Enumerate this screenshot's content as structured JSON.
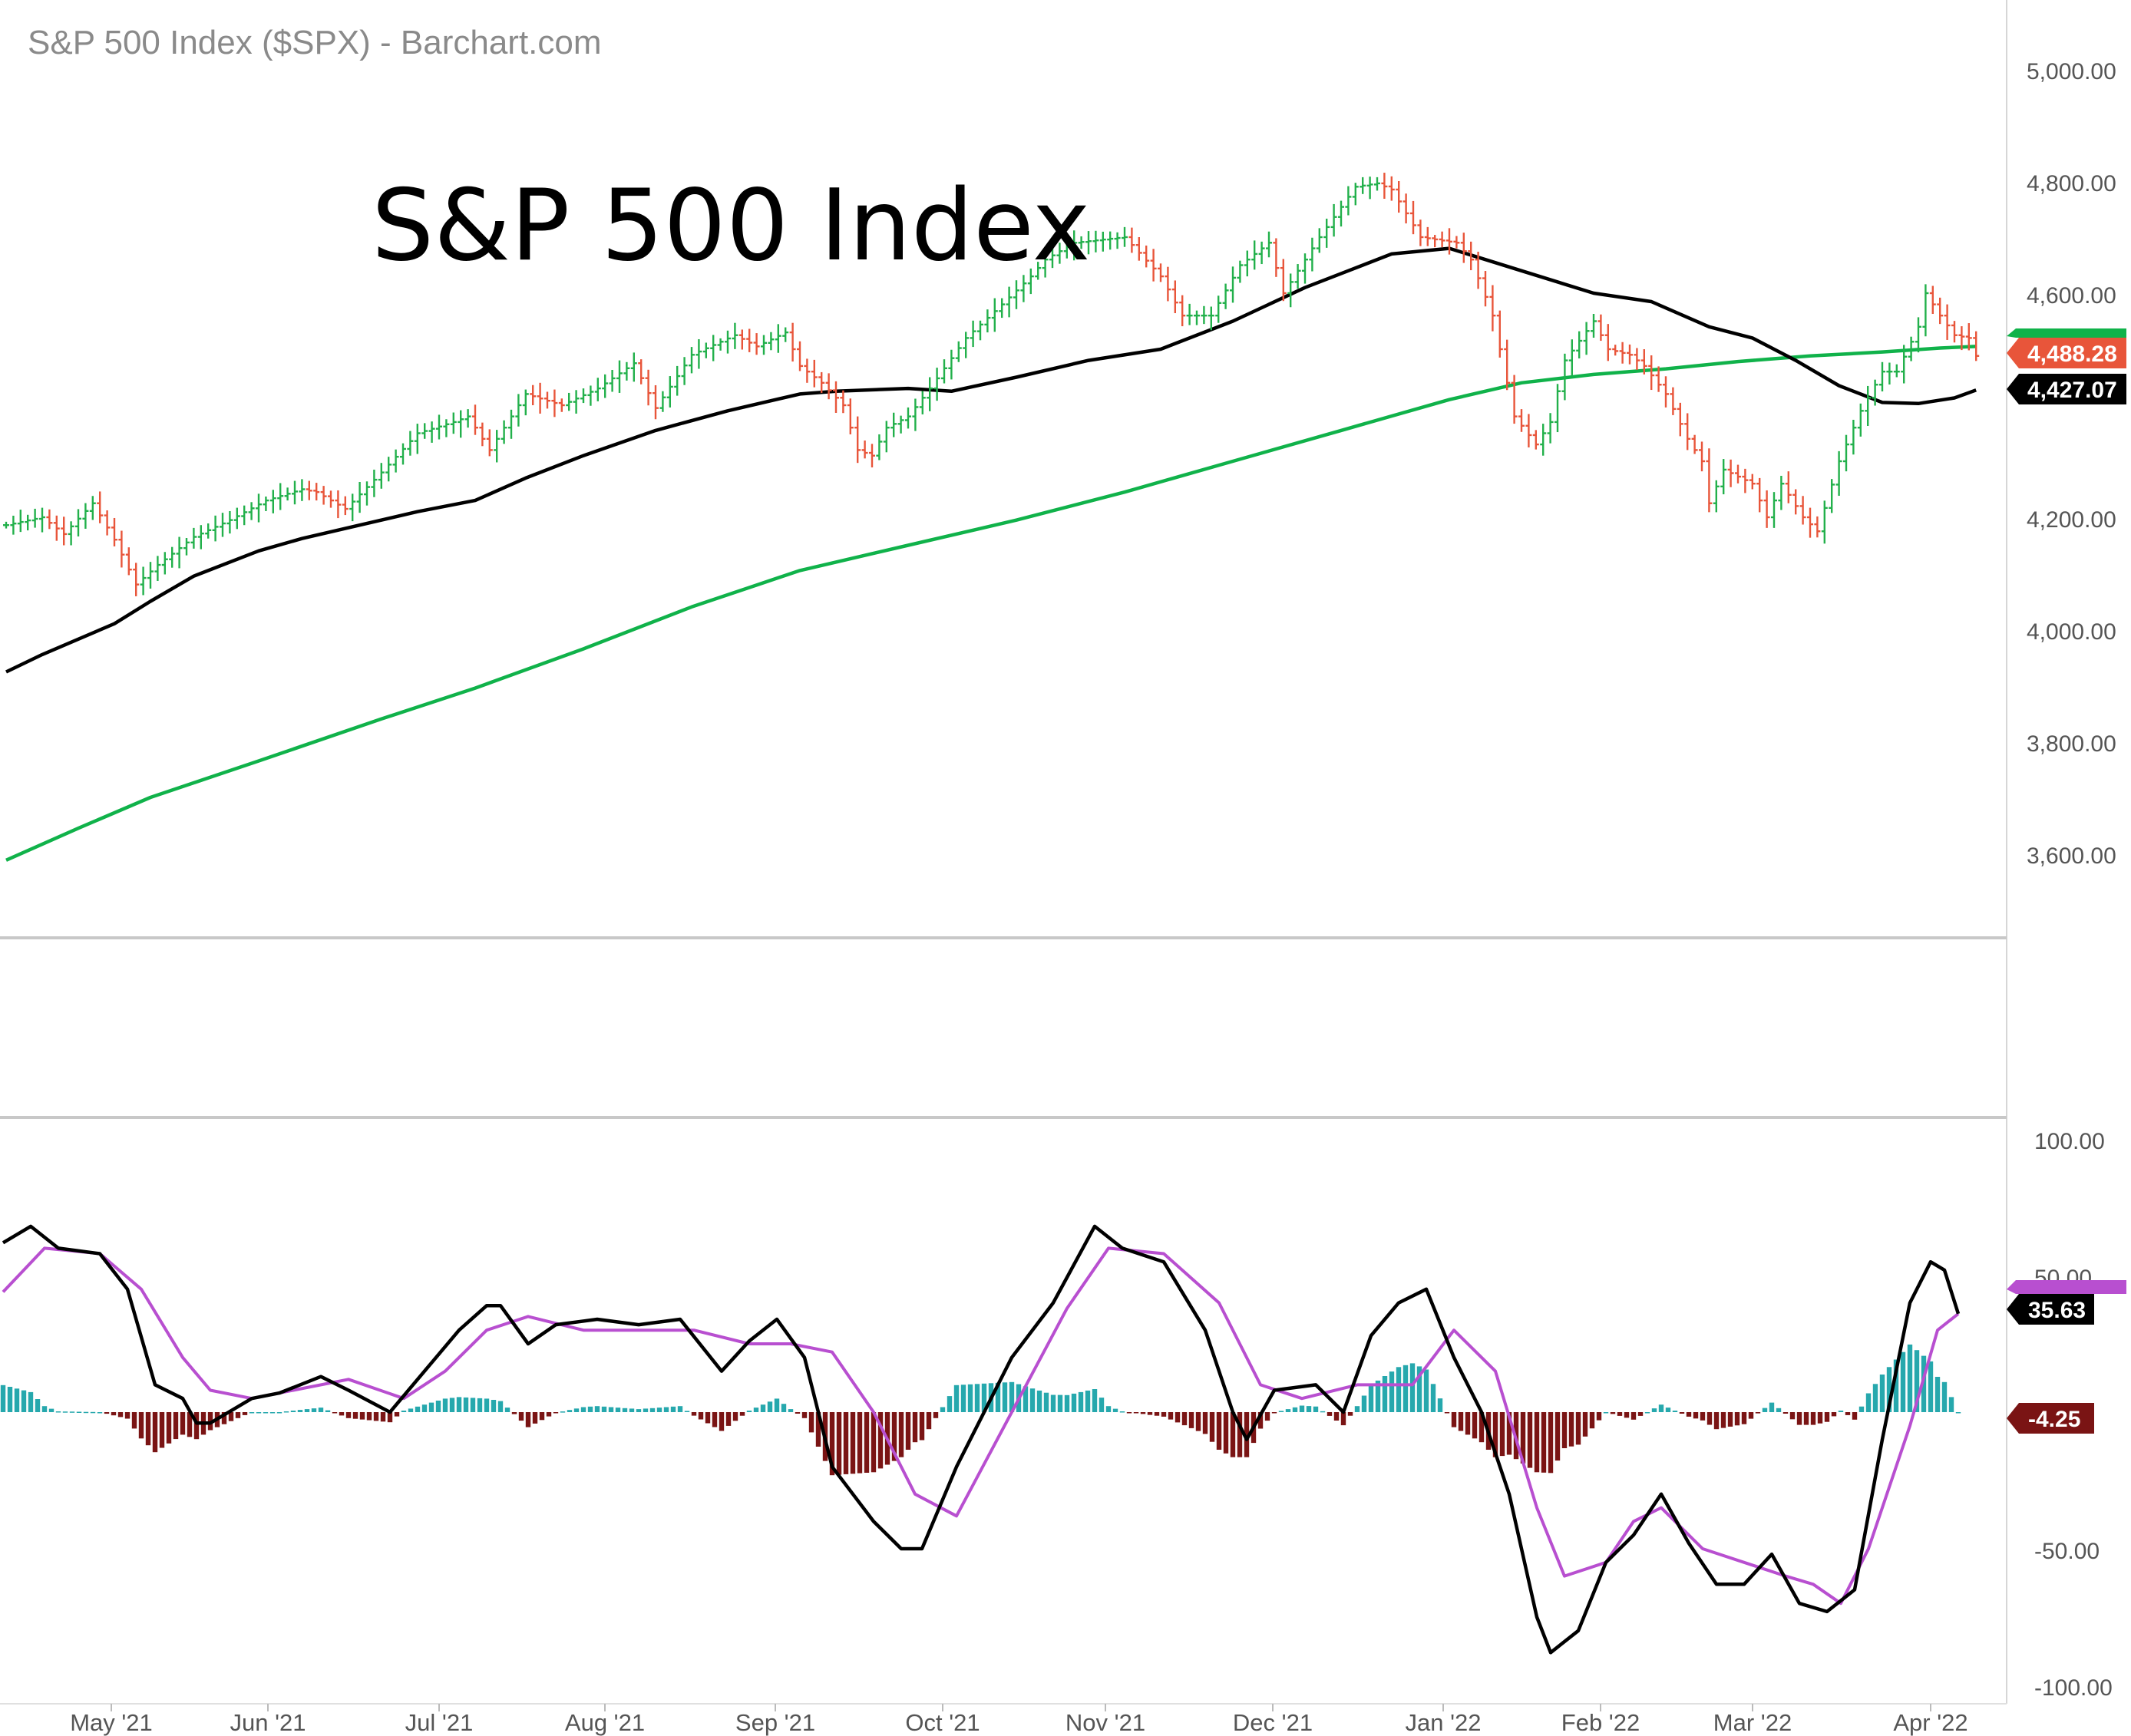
{
  "header": {
    "source_title": "S&P 500 Index ($SPX) - Barchart.com",
    "chart_title": "S&P 500 Index"
  },
  "colors": {
    "up_bar": "#22b04b",
    "down_bar": "#e8553a",
    "ma_short": "#000000",
    "ma_long": "#10b24a",
    "osc_fast": "#000000",
    "osc_slow": "#b84fd0",
    "hist_positive": "#26a8ad",
    "hist_negative": "#7a1414",
    "last_price_tag": "#e8553a"
  },
  "x_axis": {
    "labels": [
      "May '21",
      "Jun '21",
      "Jul '21",
      "Aug '21",
      "Sep '21",
      "Oct '21",
      "Nov '21",
      "Dec '21",
      "Jan '22",
      "Feb '22",
      "Mar '22",
      "Apr '22"
    ]
  },
  "chart_data": [
    {
      "type": "ohlc",
      "title": "S&P 500 Index",
      "ylim": [
        3500,
        5100
      ],
      "y_ticks": [
        "5,000.00",
        "4,800.00",
        "4,600.00",
        "4,200.00",
        "4,000.00",
        "3,800.00",
        "3,600.00"
      ],
      "y_tick_values": [
        5000,
        4800,
        4600,
        4200,
        4000,
        3800,
        3600
      ],
      "last_value_tags": [
        {
          "label": "4,488.28",
          "value": 4488.28,
          "color": "#e8553a"
        },
        {
          "label": "4,427.07",
          "value": 4427.07,
          "color": "#000000"
        }
      ],
      "close_points": [
        [
          0,
          4186
        ],
        [
          5,
          4200
        ],
        [
          8,
          4170
        ],
        [
          12,
          4225
        ],
        [
          15,
          4160
        ],
        [
          18,
          4080
        ],
        [
          21,
          4115
        ],
        [
          26,
          4165
        ],
        [
          31,
          4195
        ],
        [
          36,
          4230
        ],
        [
          41,
          4250
        ],
        [
          43,
          4245
        ],
        [
          47,
          4215
        ],
        [
          52,
          4280
        ],
        [
          57,
          4350
        ],
        [
          62,
          4370
        ],
        [
          64,
          4380
        ],
        [
          67,
          4320
        ],
        [
          72,
          4420
        ],
        [
          77,
          4400
        ],
        [
          82,
          4430
        ],
        [
          87,
          4475
        ],
        [
          90,
          4395
        ],
        [
          95,
          4490
        ],
        [
          101,
          4525
        ],
        [
          104,
          4505
        ],
        [
          108,
          4530
        ],
        [
          110,
          4470
        ],
        [
          113,
          4440
        ],
        [
          116,
          4400
        ],
        [
          118,
          4320
        ],
        [
          120,
          4310
        ],
        [
          122,
          4360
        ],
        [
          125,
          4380
        ],
        [
          128,
          4430
        ],
        [
          133,
          4520
        ],
        [
          138,
          4580
        ],
        [
          142,
          4630
        ],
        [
          144,
          4660
        ],
        [
          148,
          4690
        ],
        [
          155,
          4700
        ],
        [
          160,
          4630
        ],
        [
          163,
          4560
        ],
        [
          167,
          4560
        ],
        [
          171,
          4650
        ],
        [
          175,
          4690
        ],
        [
          177,
          4600
        ],
        [
          182,
          4700
        ],
        [
          187,
          4790
        ],
        [
          190,
          4796
        ],
        [
          192,
          4785
        ],
        [
          196,
          4700
        ],
        [
          201,
          4690
        ],
        [
          203,
          4660
        ],
        [
          206,
          4560
        ],
        [
          209,
          4380
        ],
        [
          212,
          4330
        ],
        [
          214,
          4370
        ],
        [
          216,
          4480
        ],
        [
          220,
          4550
        ],
        [
          222,
          4500
        ],
        [
          225,
          4490
        ],
        [
          227,
          4470
        ],
        [
          230,
          4420
        ],
        [
          233,
          4340
        ],
        [
          235,
          4300
        ],
        [
          236,
          4225
        ],
        [
          238,
          4285
        ],
        [
          242,
          4260
        ],
        [
          244,
          4200
        ],
        [
          246,
          4260
        ],
        [
          249,
          4200
        ],
        [
          251,
          4175
        ],
        [
          254,
          4300
        ],
        [
          257,
          4390
        ],
        [
          260,
          4460
        ],
        [
          262,
          4460
        ],
        [
          265,
          4540
        ],
        [
          266,
          4600
        ],
        [
          268,
          4560
        ],
        [
          270,
          4525
        ],
        [
          272,
          4520
        ],
        [
          273,
          4488
        ]
      ],
      "ma_short_points": [
        [
          0,
          3924
        ],
        [
          5,
          3955
        ],
        [
          15,
          4010
        ],
        [
          20,
          4050
        ],
        [
          26,
          4095
        ],
        [
          35,
          4140
        ],
        [
          41,
          4162
        ],
        [
          47,
          4180
        ],
        [
          57,
          4210
        ],
        [
          65,
          4230
        ],
        [
          72,
          4270
        ],
        [
          80,
          4310
        ],
        [
          90,
          4355
        ],
        [
          100,
          4390
        ],
        [
          110,
          4420
        ],
        [
          115,
          4425
        ],
        [
          125,
          4430
        ],
        [
          131,
          4425
        ],
        [
          140,
          4450
        ],
        [
          150,
          4480
        ],
        [
          160,
          4500
        ],
        [
          170,
          4550
        ],
        [
          180,
          4610
        ],
        [
          186,
          4640
        ],
        [
          192,
          4670
        ],
        [
          200,
          4680
        ],
        [
          210,
          4640
        ],
        [
          220,
          4600
        ],
        [
          228,
          4585
        ],
        [
          236,
          4540
        ],
        [
          242,
          4520
        ],
        [
          248,
          4480
        ],
        [
          254,
          4435
        ],
        [
          260,
          4405
        ],
        [
          265,
          4403
        ],
        [
          270,
          4413
        ],
        [
          273,
          4427
        ]
      ],
      "ma_long_points": [
        [
          0,
          3588
        ],
        [
          10,
          3645
        ],
        [
          20,
          3700
        ],
        [
          35,
          3765
        ],
        [
          52,
          3840
        ],
        [
          65,
          3895
        ],
        [
          80,
          3965
        ],
        [
          95,
          4040
        ],
        [
          110,
          4105
        ],
        [
          125,
          4150
        ],
        [
          140,
          4195
        ],
        [
          155,
          4245
        ],
        [
          170,
          4300
        ],
        [
          185,
          4355
        ],
        [
          200,
          4410
        ],
        [
          210,
          4440
        ],
        [
          220,
          4455
        ],
        [
          230,
          4465
        ],
        [
          240,
          4478
        ],
        [
          250,
          4488
        ],
        [
          260,
          4495
        ],
        [
          268,
          4502
        ],
        [
          273,
          4505
        ]
      ]
    },
    {
      "type": "oscillator",
      "ylim": [
        -100,
        100
      ],
      "y_ticks": [
        "100.00",
        "50.00",
        "-50.00",
        "-100.00"
      ],
      "y_tick_values": [
        100,
        50,
        -50,
        -100
      ],
      "last_value_tags": [
        {
          "label": "35.63",
          "value": 35.63,
          "color": "#000000"
        },
        {
          "label": "-4.25",
          "value": -4.25,
          "color": "#7a1414"
        }
      ],
      "fast_line": [
        [
          0,
          62
        ],
        [
          4,
          68
        ],
        [
          8,
          60
        ],
        [
          14,
          58
        ],
        [
          18,
          45
        ],
        [
          22,
          10
        ],
        [
          26,
          5
        ],
        [
          28,
          -4
        ],
        [
          30,
          -4
        ],
        [
          36,
          5
        ],
        [
          40,
          7
        ],
        [
          46,
          13
        ],
        [
          50,
          8
        ],
        [
          56,
          0
        ],
        [
          62,
          18
        ],
        [
          66,
          30
        ],
        [
          70,
          39
        ],
        [
          72,
          39
        ],
        [
          76,
          25
        ],
        [
          80,
          32
        ],
        [
          86,
          34
        ],
        [
          92,
          32
        ],
        [
          98,
          34
        ],
        [
          104,
          15
        ],
        [
          108,
          26
        ],
        [
          112,
          34
        ],
        [
          116,
          20
        ],
        [
          120,
          -20
        ],
        [
          126,
          -40
        ],
        [
          130,
          -50
        ],
        [
          133,
          -50
        ],
        [
          138,
          -20
        ],
        [
          146,
          20
        ],
        [
          152,
          40
        ],
        [
          158,
          68
        ],
        [
          162,
          60
        ],
        [
          168,
          55
        ],
        [
          174,
          30
        ],
        [
          178,
          0
        ],
        [
          180,
          -10
        ],
        [
          184,
          8
        ],
        [
          190,
          10
        ],
        [
          194,
          0
        ],
        [
          198,
          28
        ],
        [
          202,
          40
        ],
        [
          206,
          45
        ],
        [
          210,
          20
        ],
        [
          214,
          0
        ],
        [
          218,
          -30
        ],
        [
          222,
          -75
        ],
        [
          224,
          -88
        ],
        [
          228,
          -80
        ],
        [
          232,
          -55
        ],
        [
          236,
          -45
        ],
        [
          240,
          -30
        ],
        [
          244,
          -48
        ],
        [
          248,
          -63
        ],
        [
          252,
          -63
        ],
        [
          256,
          -52
        ],
        [
          260,
          -70
        ],
        [
          264,
          -73
        ],
        [
          268,
          -65
        ],
        [
          272,
          -10
        ],
        [
          276,
          40
        ],
        [
          279,
          55
        ],
        [
          281,
          52
        ],
        [
          283,
          36
        ]
      ],
      "slow_line": [
        [
          0,
          44
        ],
        [
          6,
          60
        ],
        [
          14,
          58
        ],
        [
          20,
          45
        ],
        [
          26,
          20
        ],
        [
          30,
          8
        ],
        [
          36,
          5
        ],
        [
          42,
          8
        ],
        [
          50,
          12
        ],
        [
          58,
          5
        ],
        [
          64,
          15
        ],
        [
          70,
          30
        ],
        [
          76,
          35
        ],
        [
          84,
          30
        ],
        [
          92,
          30
        ],
        [
          100,
          30
        ],
        [
          108,
          25
        ],
        [
          114,
          25
        ],
        [
          120,
          22
        ],
        [
          126,
          0
        ],
        [
          132,
          -30
        ],
        [
          138,
          -38
        ],
        [
          146,
          0
        ],
        [
          154,
          38
        ],
        [
          160,
          60
        ],
        [
          168,
          58
        ],
        [
          176,
          40
        ],
        [
          182,
          10
        ],
        [
          188,
          5
        ],
        [
          196,
          10
        ],
        [
          204,
          10
        ],
        [
          210,
          30
        ],
        [
          216,
          15
        ],
        [
          222,
          -35
        ],
        [
          226,
          -60
        ],
        [
          232,
          -55
        ],
        [
          236,
          -40
        ],
        [
          240,
          -35
        ],
        [
          246,
          -50
        ],
        [
          252,
          -55
        ],
        [
          258,
          -60
        ],
        [
          262,
          -63
        ],
        [
          266,
          -70
        ],
        [
          270,
          -50
        ],
        [
          276,
          -5
        ],
        [
          280,
          30
        ],
        [
          283,
          36
        ]
      ]
    }
  ]
}
